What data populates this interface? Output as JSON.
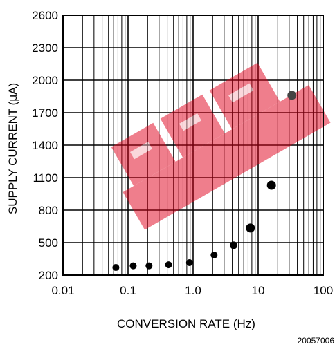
{
  "chart_data": {
    "type": "scatter",
    "xlabel": "CONVERSION RATE (Hz)",
    "ylabel": "SUPPLY CURRENT (μA)",
    "x_scale": "log",
    "xlim": [
      0.01,
      100
    ],
    "ylim": [
      200,
      2600
    ],
    "grid": true,
    "x_tick_labels": [
      "0.01",
      "0.1",
      "1.0",
      "10",
      "100"
    ],
    "x_tick_values": [
      0.01,
      0.1,
      1,
      10,
      100
    ],
    "y_ticks": [
      200,
      500,
      800,
      1100,
      1400,
      1700,
      2000,
      2300,
      2600
    ],
    "marker_color": "#000000",
    "series": [
      {
        "x": [
          0.065,
          0.12,
          0.21,
          0.42,
          0.88,
          2.1,
          4.2,
          7.6,
          16,
          33
        ],
        "y": [
          270,
          285,
          285,
          295,
          315,
          385,
          475,
          635,
          1030,
          1860
        ]
      }
    ],
    "figure_id": "20057006",
    "watermark_color": "#e0001b"
  }
}
